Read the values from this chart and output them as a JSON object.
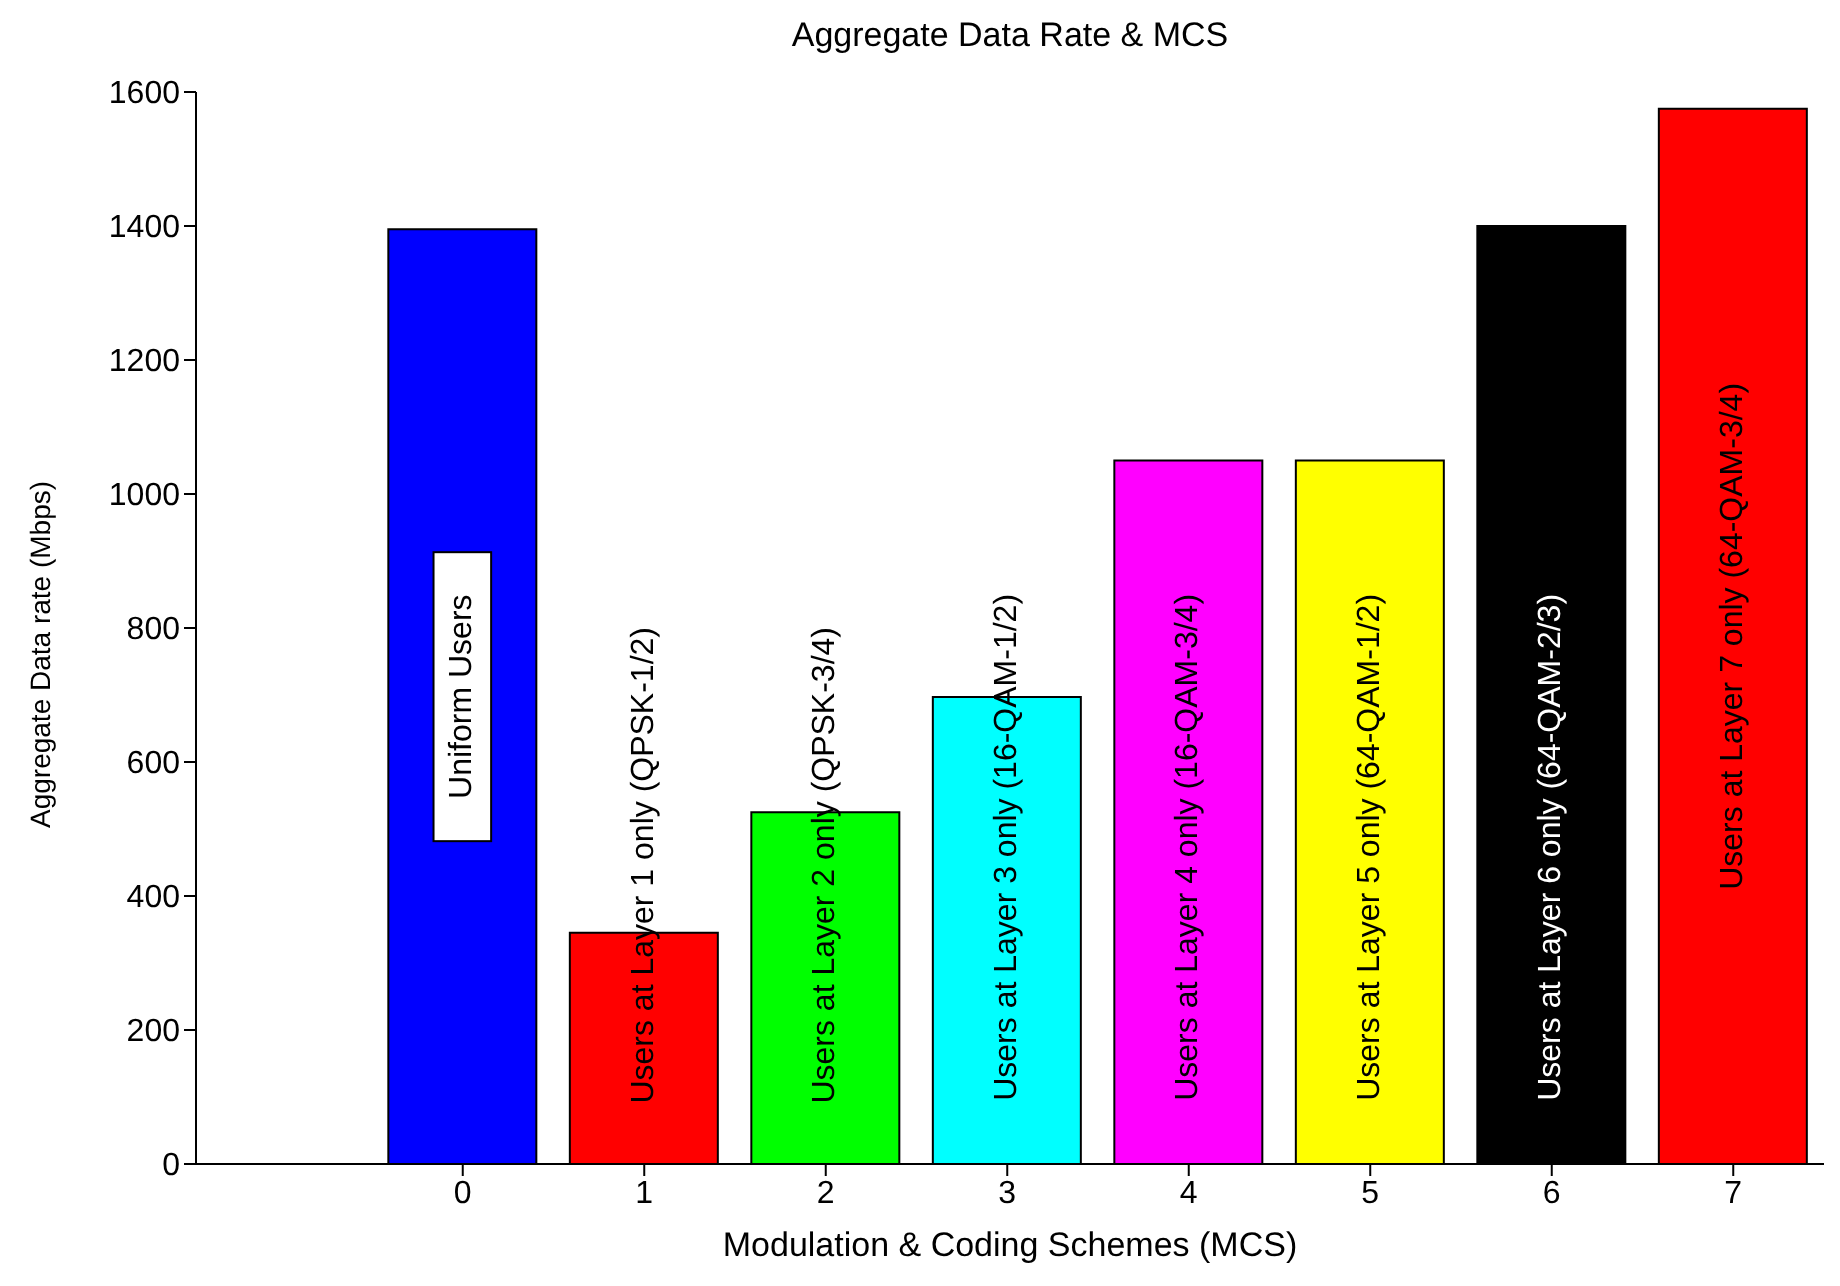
{
  "chart_data": {
    "type": "bar",
    "title": "Aggregate Data Rate & MCS",
    "xlabel": "Modulation & Coding Schemes (MCS)",
    "ylabel": "Aggregate Data rate (Mbps)",
    "categories": [
      "0",
      "1",
      "2",
      "3",
      "4",
      "5",
      "6",
      "7"
    ],
    "values": [
      1395,
      345,
      525,
      697,
      1050,
      1050,
      1400,
      1575
    ],
    "colors": [
      "#0000ff",
      "#ff0000",
      "#00ff00",
      "#00ffff",
      "#ff00ff",
      "#ffff00",
      "#000000",
      "#ff0000"
    ],
    "ylim": [
      0,
      1600
    ],
    "yticks": [
      0,
      200,
      400,
      600,
      800,
      1000,
      1200,
      1400,
      1600
    ],
    "grid": false,
    "legend": false,
    "annotations": [
      "Uniform Users",
      "Users at Layer 1 only (QPSK-1/2)",
      "Users at Layer 2 only (QPSK-3/4)",
      "Users at Layer 3 only (16-QAM-1/2)",
      "Users at Layer 4 only (16-QAM-3/4)",
      "Users at Layer 5 only (64-QAM-1/2)",
      "Users at Layer 6 only (64-QAM-2/3)",
      "Users at Layer 7 only (64-QAM-3/4)"
    ]
  }
}
